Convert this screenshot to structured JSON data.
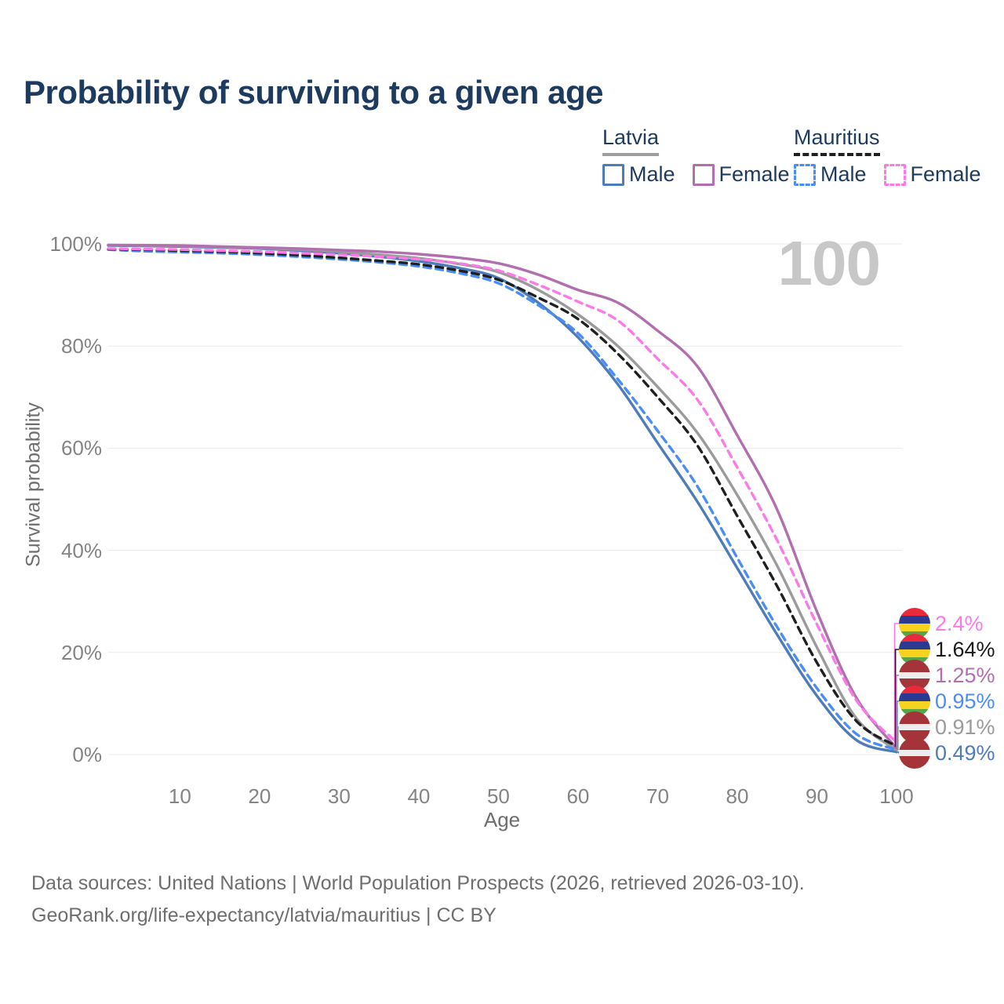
{
  "title": "Probability of surviving to a given age",
  "watermark_age": "100",
  "legend": {
    "groups": [
      {
        "country": "Latvia",
        "line_style": "solid",
        "underline_color": "#9e9e9e",
        "items": [
          {
            "label": "Male",
            "color": "#4d7cb8"
          },
          {
            "label": "Female",
            "color": "#b16fb0"
          }
        ]
      },
      {
        "country": "Mauritius",
        "line_style": "dashed",
        "underline_color": "#1f1f1f",
        "items": [
          {
            "label": "Male",
            "color": "#4a8df6"
          },
          {
            "label": "Female",
            "color": "#fb7ae6"
          }
        ]
      }
    ]
  },
  "chart_data": {
    "type": "line",
    "title": "Probability of surviving to a given age",
    "xlabel": "Age",
    "ylabel": "Survival probability",
    "xlim": [
      1,
      100
    ],
    "ylim": [
      0,
      100
    ],
    "grid": "horizontal",
    "x_ticks": [
      10,
      20,
      30,
      40,
      50,
      60,
      70,
      80,
      90,
      100
    ],
    "y_ticks": [
      {
        "value": 0,
        "label": "0%"
      },
      {
        "value": 20,
        "label": "20%"
      },
      {
        "value": 40,
        "label": "40%"
      },
      {
        "value": 60,
        "label": "60%"
      },
      {
        "value": 80,
        "label": "80%"
      },
      {
        "value": 100,
        "label": "100%"
      }
    ],
    "ages": [
      1,
      5,
      10,
      15,
      20,
      25,
      30,
      35,
      40,
      45,
      50,
      55,
      60,
      65,
      70,
      75,
      80,
      85,
      90,
      95,
      100
    ],
    "series": [
      {
        "id": "latvia-male",
        "country": "Latvia",
        "sex": "Male",
        "style": "solid",
        "color": "#4d7cb8",
        "values": [
          99.7,
          99.6,
          99.5,
          99.3,
          99.1,
          98.7,
          98.2,
          97.5,
          96.6,
          95.3,
          93.3,
          88.5,
          81.7,
          72.5,
          61.0,
          49.5,
          36.5,
          23.5,
          11.5,
          2.8,
          0.49
        ]
      },
      {
        "id": "latvia-both",
        "country": "Latvia",
        "sex": "Both sexes",
        "style": "solid",
        "color": "#9b9b9b",
        "values": [
          99.75,
          99.7,
          99.6,
          99.4,
          99.2,
          98.9,
          98.5,
          97.9,
          97.2,
          96.1,
          94.5,
          91.0,
          86.2,
          80.0,
          72.0,
          63.0,
          50.8,
          37.0,
          21.0,
          7.0,
          0.91
        ]
      },
      {
        "id": "latvia-female",
        "country": "Latvia",
        "sex": "Female",
        "style": "solid",
        "color": "#b16fb0",
        "values": [
          99.8,
          99.75,
          99.7,
          99.5,
          99.3,
          99.1,
          98.8,
          98.5,
          98.0,
          97.3,
          96.2,
          94.0,
          91.0,
          88.5,
          83.0,
          76.0,
          62.5,
          48.0,
          28.0,
          11.0,
          1.25
        ]
      },
      {
        "id": "mauritius-male",
        "country": "Mauritius",
        "sex": "Male",
        "style": "dashed",
        "color": "#4a8df6",
        "values": [
          98.9,
          98.6,
          98.4,
          98.2,
          97.9,
          97.5,
          97.0,
          96.4,
          95.6,
          94.3,
          92.3,
          88.0,
          82.5,
          73.5,
          63.4,
          52.5,
          38.5,
          25.0,
          13.0,
          4.0,
          0.95
        ]
      },
      {
        "id": "mauritius-both",
        "country": "Mauritius",
        "sex": "Both sexes",
        "style": "dashed",
        "color": "#1f1f1f",
        "values": [
          99.0,
          98.9,
          98.7,
          98.5,
          98.2,
          97.8,
          97.3,
          96.7,
          96.0,
          94.8,
          93.0,
          89.5,
          85.3,
          78.5,
          70.0,
          60.5,
          46.7,
          33.0,
          18.0,
          6.5,
          1.64
        ]
      },
      {
        "id": "mauritius-female",
        "country": "Mauritius",
        "sex": "Female",
        "style": "dashed",
        "color": "#fb7ae6",
        "values": [
          99.1,
          99.0,
          98.9,
          98.7,
          98.5,
          98.2,
          97.9,
          97.5,
          97.0,
          96.2,
          94.8,
          92.0,
          88.7,
          85.0,
          77.5,
          69.5,
          56.2,
          42.0,
          25.5,
          10.5,
          2.4
        ]
      }
    ]
  },
  "end_labels": [
    {
      "value": "2.4%",
      "series": "mauritius-female",
      "flag": "mauritius",
      "color": "#fb7ae6"
    },
    {
      "value": "1.64%",
      "series": "mauritius-both",
      "flag": "mauritius",
      "color": "#1a1a1a"
    },
    {
      "value": "1.25%",
      "series": "latvia-female",
      "flag": "latvia",
      "color": "#b16fb0"
    },
    {
      "value": "0.95%",
      "series": "mauritius-male",
      "flag": "mauritius",
      "color": "#4a8df6"
    },
    {
      "value": "0.91%",
      "series": "latvia-both",
      "flag": "latvia",
      "color": "#9b9b9b"
    },
    {
      "value": "0.49%",
      "series": "latvia-male",
      "flag": "latvia",
      "color": "#4d7cb8"
    }
  ],
  "flags": {
    "mauritius": {
      "name": "mauritius-flag-icon",
      "stripes": [
        [
          "#ea2a3a",
          0,
          25
        ],
        [
          "#2b3990",
          25,
          50
        ],
        [
          "#f5d31f",
          50,
          75
        ],
        [
          "#57a546",
          75,
          100
        ]
      ]
    },
    "latvia": {
      "name": "latvia-flag-icon",
      "stripes": [
        [
          "#a4343a",
          0,
          40
        ],
        [
          "#ededed",
          40,
          60
        ],
        [
          "#a4343a",
          60,
          100
        ]
      ]
    }
  },
  "footer": {
    "line1": "Data sources: United Nations | World Population Prospects (2026, retrieved 2026-03-10).",
    "line2": "GeoRank.org/life-expectancy/latvia/mauritius | CC BY"
  }
}
